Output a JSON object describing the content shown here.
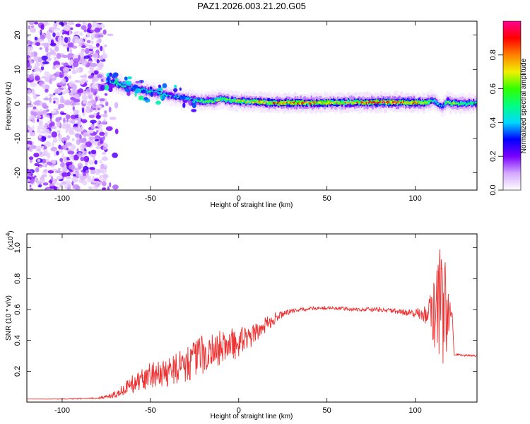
{
  "title": "PAZ1.2026.003.21.20.G05",
  "chart_data": [
    {
      "type": "heatmap",
      "name": "spectrogram",
      "xlabel": "Height of straight line (km)",
      "ylabel": "Frequency (Hz)",
      "xlim": [
        -120,
        135
      ],
      "ylim": [
        -25,
        24
      ],
      "xticks": [
        "-100",
        "-50",
        "0",
        "50",
        "100"
      ],
      "xtick_values": [
        -100,
        -50,
        0,
        50,
        100
      ],
      "yticks": [
        "20",
        "10",
        "0",
        "-10",
        "-20"
      ],
      "ytick_values": [
        20,
        10,
        0,
        -10,
        -20
      ],
      "colorbar": {
        "label": "Normalized spectral amplitude",
        "range": [
          0,
          1
        ],
        "ticks": [
          "0.0",
          "0.2",
          "0.4",
          "0.6",
          "0.8"
        ],
        "tick_values": [
          0.0,
          0.2,
          0.4,
          0.6,
          0.8
        ],
        "colors": [
          "#ffffff",
          "#d4a8ff",
          "#7a00ff",
          "#0000ff",
          "#00d8ff",
          "#00ff80",
          "#30ff00",
          "#f0f000",
          "#ff8000",
          "#ff0000",
          "#ff0090"
        ]
      },
      "ridge": {
        "x": [
          -75,
          -70,
          -65,
          -60,
          -55,
          -50,
          -45,
          -40,
          -35,
          -30,
          -25,
          -20,
          -15,
          -10,
          -5,
          0,
          10,
          20,
          40,
          60,
          80,
          100,
          105,
          110,
          115,
          118,
          120,
          125,
          135
        ],
        "y": [
          6.5,
          6.0,
          5.0,
          4.5,
          4.0,
          3.5,
          3.0,
          2.5,
          2.0,
          1.5,
          1.0,
          0.8,
          0.8,
          1.5,
          1.0,
          0.8,
          0.6,
          0.3,
          0.3,
          0.4,
          0.5,
          0.4,
          0.4,
          1.0,
          -1.0,
          0.8,
          0.2,
          0.1,
          0.2
        ],
        "amplitude": [
          0.45,
          0.5,
          0.5,
          0.45,
          0.5,
          0.45,
          0.4,
          0.45,
          0.4,
          0.4,
          0.5,
          0.55,
          0.6,
          0.55,
          0.6,
          0.65,
          0.7,
          0.8,
          0.75,
          0.72,
          0.85,
          0.8,
          0.7,
          0.45,
          0.35,
          0.6,
          0.7,
          0.55,
          0.5
        ]
      },
      "noise_region_x": [
        -120,
        -75
      ]
    },
    {
      "type": "line",
      "name": "snr",
      "xlabel": "Height of straight line (km)",
      "ylabel": "SNR (10 * v/v)",
      "yscale_label": "(x10",
      "yscale_exp": "4",
      "yscale_close": ")",
      "xlim": [
        -120,
        135
      ],
      "ylim": [
        0,
        1.09
      ],
      "xticks": [
        "-100",
        "-50",
        "0",
        "50",
        "100"
      ],
      "xtick_values": [
        -100,
        -50,
        0,
        50,
        100
      ],
      "yticks": [
        "1.0",
        "0.8",
        "0.6",
        "0.4",
        "0.2"
      ],
      "ytick_values": [
        1.0,
        0.8,
        0.6,
        0.4,
        0.2
      ],
      "series": [
        {
          "color": "#ee3030",
          "x": [
            -120,
            -100,
            -80,
            -72,
            -65,
            -60,
            -55,
            -50,
            -45,
            -40,
            -35,
            -30,
            -25,
            -20,
            -15,
            -10,
            -5,
            0,
            5,
            10,
            15,
            20,
            25,
            30,
            35,
            40,
            45,
            50,
            60,
            70,
            80,
            90,
            100,
            105,
            108,
            110,
            112,
            114,
            116,
            117,
            118,
            119,
            120,
            121,
            122,
            125,
            135
          ],
          "y": [
            0.02,
            0.02,
            0.025,
            0.04,
            0.08,
            0.12,
            0.15,
            0.17,
            0.18,
            0.2,
            0.22,
            0.25,
            0.28,
            0.31,
            0.33,
            0.35,
            0.37,
            0.39,
            0.41,
            0.45,
            0.5,
            0.54,
            0.57,
            0.59,
            0.6,
            0.605,
            0.61,
            0.61,
            0.605,
            0.6,
            0.6,
            0.585,
            0.575,
            0.57,
            0.57,
            0.58,
            0.6,
            0.62,
            0.6,
            0.58,
            0.58,
            0.59,
            0.58,
            0.57,
            0.31,
            0.305,
            0.3
          ],
          "noise": [
            0.0,
            0.003,
            0.004,
            0.015,
            0.04,
            0.06,
            0.07,
            0.09,
            0.09,
            0.1,
            0.11,
            0.12,
            0.12,
            0.13,
            0.12,
            0.12,
            0.11,
            0.1,
            0.08,
            0.06,
            0.05,
            0.04,
            0.02,
            0.015,
            0.012,
            0.012,
            0.012,
            0.012,
            0.012,
            0.012,
            0.015,
            0.018,
            0.03,
            0.05,
            0.1,
            0.2,
            0.3,
            0.4,
            0.4,
            0.35,
            0.25,
            0.15,
            0.05,
            0.01,
            0.008,
            0.006,
            0.006
          ]
        }
      ]
    }
  ]
}
